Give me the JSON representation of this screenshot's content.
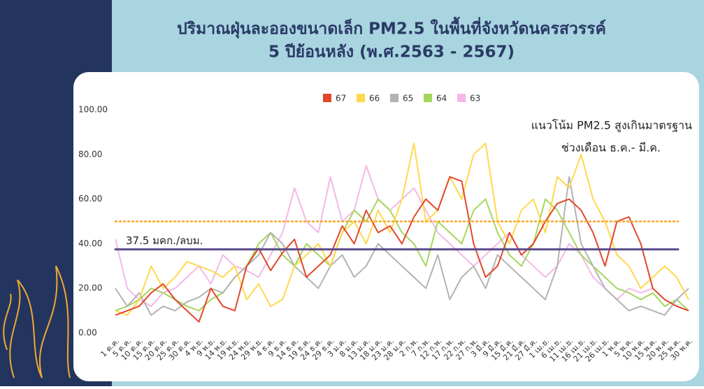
{
  "chart_data": {
    "type": "line",
    "title": [
      "ปริมาณฝุ่นละอองขนาดเล็ก PM2.5 ในพื้นที่จังหวัดนครสวรรค์",
      "5 ปีย้อนหลัง (พ.ศ.2563 - 2567)"
    ],
    "annotations": [
      "แนวโน้ม PM2.5 สูงเกินมาตรฐาน",
      "ช่วงเดือน ธ.ค.- มี.ค."
    ],
    "legend": "top",
    "categories": [
      "1 ต.ค.",
      "5 ต.ค.",
      "10 ต.ค.",
      "15 ต.ค.",
      "20 ต.ค.",
      "25 ต.ค.",
      "30 ต.ค.",
      "4 พ.ย.",
      "9 พ.ย.",
      "14 พ.ย.",
      "19 พ.ย.",
      "24 พ.ย.",
      "29 พ.ย.",
      "4 ธ.ค.",
      "9 ธ.ค.",
      "14 ธ.ค.",
      "19 ธ.ค.",
      "24 ธ.ค.",
      "29 ธ.ค.",
      "3 ม.ค.",
      "8 ม.ค.",
      "13 ม.ค.",
      "18 ม.ค.",
      "23 ม.ค.",
      "28 ม.ค.",
      "2 ก.พ.",
      "7 ก.พ.",
      "12 ก.พ.",
      "17 ก.พ.",
      "22 ก.พ.",
      "27 ก.พ.",
      "3 มี.ค.",
      "9 มี.ค.",
      "15 มี.ค.",
      "21 มี.ค.",
      "27 มี.ค.",
      "1 เม.ย.",
      "6 เม.ย.",
      "11 เม.ย.",
      "16 เม.ย.",
      "21 เม.ย.",
      "26 เม.ย.",
      "1 พ.ค.",
      "5 พ.ค.",
      "10 พ.ค.",
      "15 พ.ค.",
      "20 พ.ค.",
      "25 พ.ค.",
      "30 พ.ค."
    ],
    "series": [
      {
        "name": "67",
        "color": "#e2472b",
        "values": [
          8,
          10,
          12,
          18,
          22,
          15,
          10,
          5,
          20,
          12,
          10,
          30,
          38,
          28,
          36,
          42,
          25,
          30,
          35,
          48,
          40,
          55,
          45,
          48,
          40,
          52,
          60,
          55,
          70,
          68,
          40,
          25,
          30,
          45,
          35,
          40,
          50,
          58,
          60,
          55,
          45,
          30,
          50,
          52,
          40,
          20,
          15,
          12,
          10
        ]
      },
      {
        "name": "66",
        "color": "#ffd84d",
        "values": [
          10,
          8,
          15,
          30,
          20,
          25,
          32,
          30,
          28,
          25,
          30,
          15,
          22,
          12,
          15,
          30,
          35,
          40,
          30,
          45,
          50,
          40,
          55,
          45,
          60,
          85,
          50,
          55,
          70,
          60,
          80,
          85,
          50,
          40,
          55,
          60,
          45,
          70,
          65,
          80,
          60,
          50,
          35,
          30,
          20,
          25,
          30,
          25,
          15
        ]
      },
      {
        "name": "65",
        "color": "#b3b3b3",
        "values": [
          20,
          12,
          18,
          8,
          12,
          10,
          14,
          16,
          20,
          18,
          25,
          30,
          35,
          45,
          40,
          30,
          25,
          20,
          30,
          35,
          25,
          30,
          40,
          35,
          30,
          25,
          20,
          35,
          15,
          25,
          30,
          20,
          35,
          30,
          25,
          20,
          15,
          30,
          70,
          40,
          30,
          20,
          15,
          10,
          12,
          10,
          8,
          15,
          20
        ]
      },
      {
        "name": "64",
        "color": "#a5d65c",
        "values": [
          10,
          12,
          15,
          20,
          18,
          15,
          12,
          10,
          15,
          18,
          25,
          30,
          40,
          45,
          35,
          30,
          40,
          35,
          30,
          45,
          55,
          50,
          60,
          55,
          45,
          40,
          30,
          50,
          45,
          40,
          55,
          60,
          45,
          35,
          30,
          40,
          60,
          55,
          45,
          35,
          30,
          25,
          20,
          18,
          15,
          18,
          12,
          15,
          10
        ]
      },
      {
        "name": "63",
        "color": "#f3b8e8",
        "values": [
          42,
          20,
          15,
          12,
          18,
          20,
          25,
          30,
          22,
          35,
          30,
          28,
          25,
          35,
          45,
          65,
          50,
          45,
          70,
          50,
          55,
          75,
          60,
          55,
          60,
          65,
          55,
          45,
          40,
          35,
          30,
          35,
          40,
          45,
          35,
          30,
          25,
          30,
          40,
          35,
          25,
          20,
          15,
          20,
          18,
          20,
          15,
          12,
          10
        ]
      }
    ],
    "reference_lines": [
      {
        "value": 37.5,
        "label": "37.5 มคก./ลบม.",
        "color": "#5a4a8c",
        "style": "solid"
      },
      {
        "value": 50,
        "color": "#f5a524",
        "style": "dotted"
      }
    ],
    "ylim": [
      0,
      100
    ],
    "yticks": [
      {
        "value": 0,
        "label": "0.00"
      },
      {
        "value": 20,
        "label": "20.00"
      },
      {
        "value": 40,
        "label": "40.00"
      },
      {
        "value": 60,
        "label": "60.00"
      },
      {
        "value": 80,
        "label": "80.00"
      },
      {
        "value": 100,
        "label": "100.00"
      }
    ]
  }
}
